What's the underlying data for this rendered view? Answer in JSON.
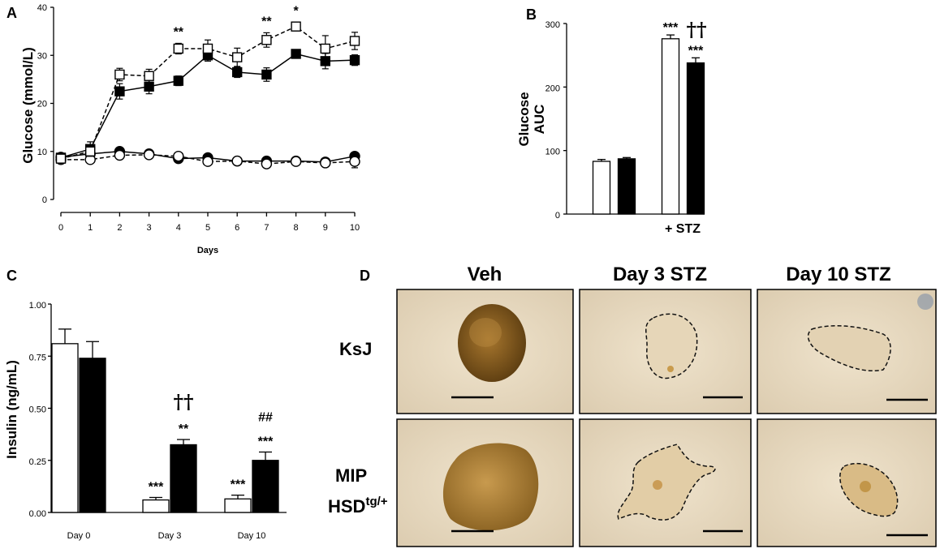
{
  "chart_data": [
    {
      "panel": "A",
      "type": "line",
      "xlabel": "Days",
      "ylabel": "Glucose (mmol/L)",
      "xlim": [
        0,
        10
      ],
      "ylim": [
        0,
        40
      ],
      "x_ticks": [
        "0",
        "1",
        "2",
        "3",
        "4",
        "5",
        "6",
        "7",
        "8",
        "9",
        "10"
      ],
      "y_ticks": [
        "0",
        "10",
        "20",
        "30",
        "40"
      ],
      "x": [
        0,
        1,
        2,
        3,
        4,
        5,
        6,
        7,
        8,
        9,
        10
      ],
      "series": [
        {
          "marker": "open-square",
          "line": "dashed",
          "values": [
            8.5,
            10.0,
            26.0,
            25.7,
            31.4,
            31.4,
            29.6,
            33.2,
            36.0,
            31.4,
            33.0
          ],
          "err": [
            1.0,
            1.0,
            1.3,
            1.4,
            1.1,
            1.8,
            1.9,
            1.5,
            0.9,
            2.7,
            1.8
          ]
        },
        {
          "marker": "filled-square",
          "line": "solid",
          "values": [
            8.7,
            10.5,
            22.5,
            23.5,
            24.7,
            30.0,
            26.5,
            26.0,
            30.3,
            28.8,
            29.0
          ],
          "err": [
            0.8,
            1.5,
            1.6,
            1.5,
            1.0,
            1.2,
            1.1,
            1.4,
            0.9,
            1.6,
            1.1
          ]
        },
        {
          "marker": "filled-circle",
          "line": "solid",
          "values": [
            8.8,
            9.5,
            10.0,
            9.5,
            8.5,
            8.7,
            8.0,
            8.0,
            8.0,
            7.8,
            9.0
          ],
          "err": [
            0.6,
            0.6,
            0.6,
            0.5,
            0.5,
            0.5,
            0.5,
            0.5,
            0.5,
            0.5,
            0.6
          ]
        },
        {
          "marker": "open-circle",
          "line": "dashed",
          "values": [
            8.3,
            8.3,
            9.2,
            9.3,
            9.0,
            7.9,
            8.0,
            7.4,
            7.9,
            7.6,
            7.9
          ],
          "err": [
            0.6,
            0.6,
            0.6,
            0.5,
            0.6,
            0.5,
            0.5,
            0.5,
            0.5,
            0.5,
            1.3
          ]
        }
      ],
      "annotations": [
        {
          "x": 4,
          "text": "**"
        },
        {
          "x": 7,
          "text": "**"
        },
        {
          "x": 8,
          "text": "*"
        }
      ]
    },
    {
      "panel": "B",
      "type": "bar",
      "ylabel_lines": [
        "Glucose",
        "AUC"
      ],
      "ylim": [
        0,
        300
      ],
      "y_ticks": [
        "0",
        "100",
        "200",
        "300"
      ],
      "group_labels": [
        "",
        "+ STZ"
      ],
      "bars": [
        {
          "group": 0,
          "fill": "open",
          "value": 83,
          "err": 3
        },
        {
          "group": 0,
          "fill": "filled",
          "value": 87,
          "err": 2
        },
        {
          "group": 1,
          "fill": "open",
          "value": 276,
          "err": 6,
          "label": "***"
        },
        {
          "group": 1,
          "fill": "filled",
          "value": 238,
          "err": 8,
          "label": "***"
        }
      ],
      "extra_annotations": [
        "††"
      ]
    },
    {
      "panel": "C",
      "type": "bar",
      "ylabel": "Insulin (ng/mL)",
      "ylim": [
        0,
        1.0
      ],
      "y_ticks": [
        "0.00",
        "0.25",
        "0.50",
        "0.75",
        "1.00"
      ],
      "categories": [
        "Day 0",
        "Day 3",
        "Day 10"
      ],
      "series": [
        {
          "fill": "open",
          "values": [
            0.81,
            0.06,
            0.065
          ],
          "err": [
            0.07,
            0.012,
            0.018
          ],
          "labels": [
            "",
            "***",
            "***"
          ]
        },
        {
          "fill": "filled",
          "values": [
            0.74,
            0.325,
            0.25
          ],
          "err": [
            0.08,
            0.025,
            0.04
          ],
          "labels": [
            "",
            "**",
            "***"
          ]
        }
      ],
      "top_annotations": [
        "",
        "††",
        "##"
      ]
    }
  ],
  "panel_labels": {
    "a": "A",
    "b": "B",
    "c": "C",
    "d": "D"
  },
  "micrographs": {
    "columns": [
      "Veh",
      "Day 3 STZ",
      "Day 10 STZ"
    ],
    "rows": [
      {
        "lines": [
          "KsJ"
        ]
      },
      {
        "lines": [
          "MIP",
          "HSD"
        ],
        "superscript": "tg/+"
      }
    ]
  }
}
